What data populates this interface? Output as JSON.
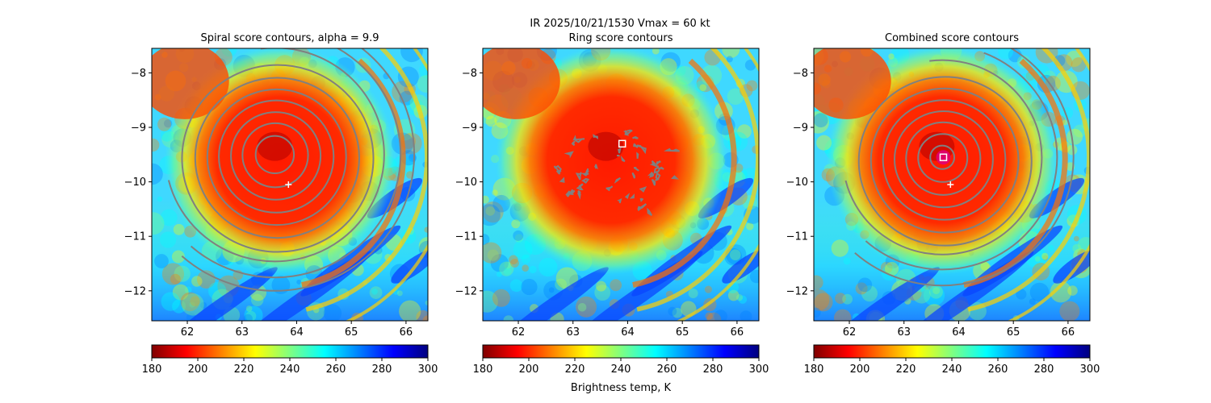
{
  "figure": {
    "suptitle": "IR  2025/10/21/1530    Vmax = 60 kt",
    "colorbar_label": "Brightness temp, K",
    "colors": {
      "contour": "#808080",
      "center_marker": "#ffffff",
      "peak_marker_fill": "#e0007a"
    }
  },
  "chart_data": [
    {
      "type": "heatmap",
      "title": "Spiral score contours, alpha =  9.9",
      "xlabel": "",
      "ylabel": "",
      "xlim": [
        61.35,
        66.4
      ],
      "ylim": [
        -12.55,
        -7.55
      ],
      "xticks": [
        62,
        63,
        64,
        65,
        66
      ],
      "yticks": [
        -8,
        -9,
        -10,
        -11,
        -12
      ],
      "colormap": "jet",
      "colorbar": {
        "range": [
          180,
          300
        ],
        "ticks": [
          180,
          200,
          220,
          240,
          260,
          280,
          300
        ]
      },
      "contours": {
        "kind": "concentric",
        "center": [
          63.6,
          -9.5
        ],
        "radii_deg": [
          0.35,
          0.6,
          0.82,
          1.05,
          1.27,
          1.5,
          1.75,
          2.0,
          2.3,
          2.55
        ]
      },
      "markers": [
        {
          "type": "plus",
          "x": 63.85,
          "y": -10.05
        }
      ]
    },
    {
      "type": "heatmap",
      "title": "Ring score contours",
      "xlabel": "",
      "ylabel": "",
      "xlim": [
        61.35,
        66.4
      ],
      "ylim": [
        -12.55,
        -7.55
      ],
      "xticks": [
        62,
        63,
        64,
        65,
        66
      ],
      "yticks": [
        -8,
        -9,
        -10,
        -11,
        -12
      ],
      "colormap": "jet",
      "colorbar": {
        "range": [
          180,
          300
        ],
        "ticks": [
          180,
          200,
          220,
          240,
          260,
          280,
          300
        ]
      },
      "contours": {
        "kind": "scattered",
        "center": [
          63.8,
          -9.8
        ]
      },
      "markers": [
        {
          "type": "square",
          "x": 63.9,
          "y": -9.3
        }
      ]
    },
    {
      "type": "heatmap",
      "title": "Combined score contours",
      "xlabel": "",
      "ylabel": "",
      "xlim": [
        61.35,
        66.4
      ],
      "ylim": [
        -12.55,
        -7.55
      ],
      "xticks": [
        62,
        63,
        64,
        65,
        66
      ],
      "yticks": [
        -8,
        -9,
        -10,
        -11,
        -12
      ],
      "colormap": "jet",
      "colorbar": {
        "range": [
          180,
          300
        ],
        "ticks": [
          180,
          200,
          220,
          240,
          260,
          280,
          300
        ]
      },
      "contours": {
        "kind": "concentric",
        "center": [
          63.7,
          -9.55
        ],
        "radii_deg": [
          0.22,
          0.45,
          0.68,
          0.9,
          1.12,
          1.35,
          1.58,
          1.82,
          2.1,
          2.4
        ]
      },
      "markers": [
        {
          "type": "plus",
          "x": 63.85,
          "y": -10.05
        },
        {
          "type": "square",
          "x": 63.72,
          "y": -9.55
        }
      ]
    }
  ]
}
